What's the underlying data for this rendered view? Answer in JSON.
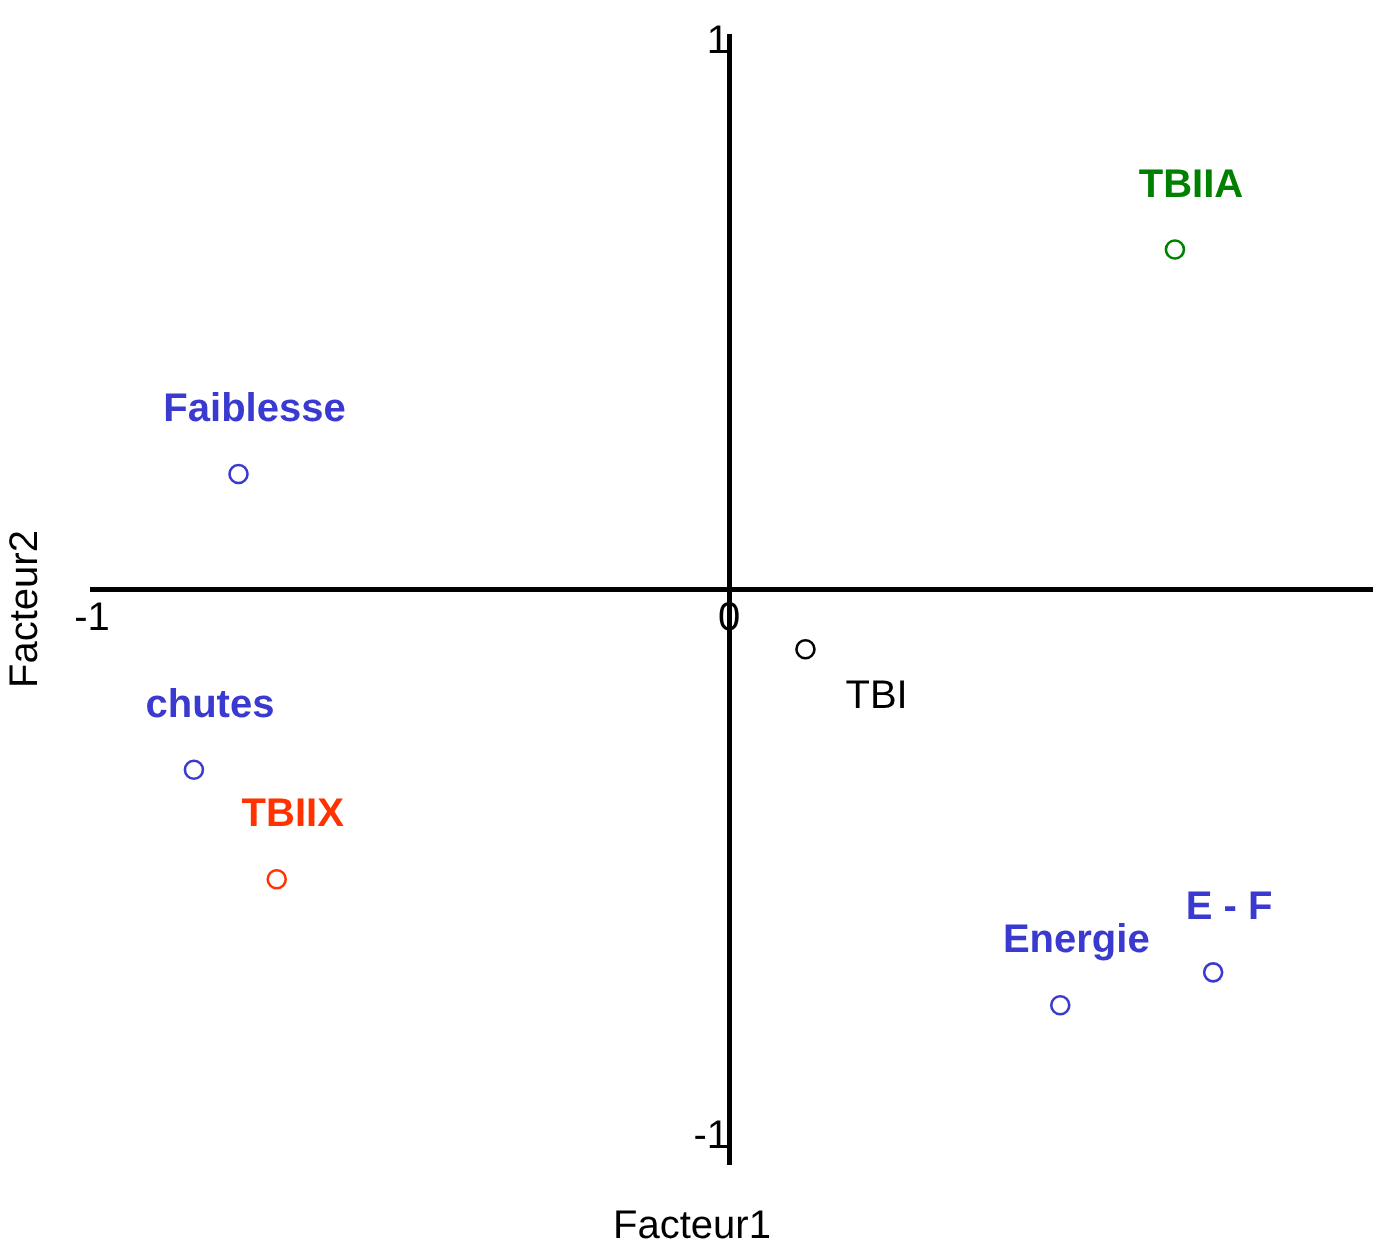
{
  "chart_data": {
    "type": "scatter",
    "xlabel": "Facteur1",
    "ylabel": "Facteur2",
    "xlim": [
      -1,
      1.01
    ],
    "ylim": [
      -1.05,
      1.01
    ],
    "xticks": [
      -1,
      0
    ],
    "yticks": [
      -1,
      1
    ],
    "grid": false,
    "legend": false,
    "marker": "circle",
    "series": [
      {
        "name": "TBIIA",
        "color": "#008000",
        "x": [
          0.7
        ],
        "values": [
          0.62
        ]
      },
      {
        "name": "Faiblesse",
        "color": "#3a3ad0",
        "x": [
          -0.77
        ],
        "values": [
          0.21
        ]
      },
      {
        "name": "TBI",
        "color": "#000000",
        "x": [
          0.12
        ],
        "values": [
          -0.11
        ]
      },
      {
        "name": "chutes",
        "color": "#3a3ad0",
        "x": [
          -0.84
        ],
        "values": [
          -0.33
        ]
      },
      {
        "name": "TBIIX",
        "color": "#ff3300",
        "x": [
          -0.71
        ],
        "values": [
          -0.53
        ]
      },
      {
        "name": "Energie",
        "color": "#3a3ad0",
        "x": [
          0.52
        ],
        "values": [
          -0.76
        ]
      },
      {
        "name": "E - F",
        "color": "#3a3ad0",
        "x": [
          0.76
        ],
        "values": [
          -0.7
        ]
      }
    ]
  }
}
